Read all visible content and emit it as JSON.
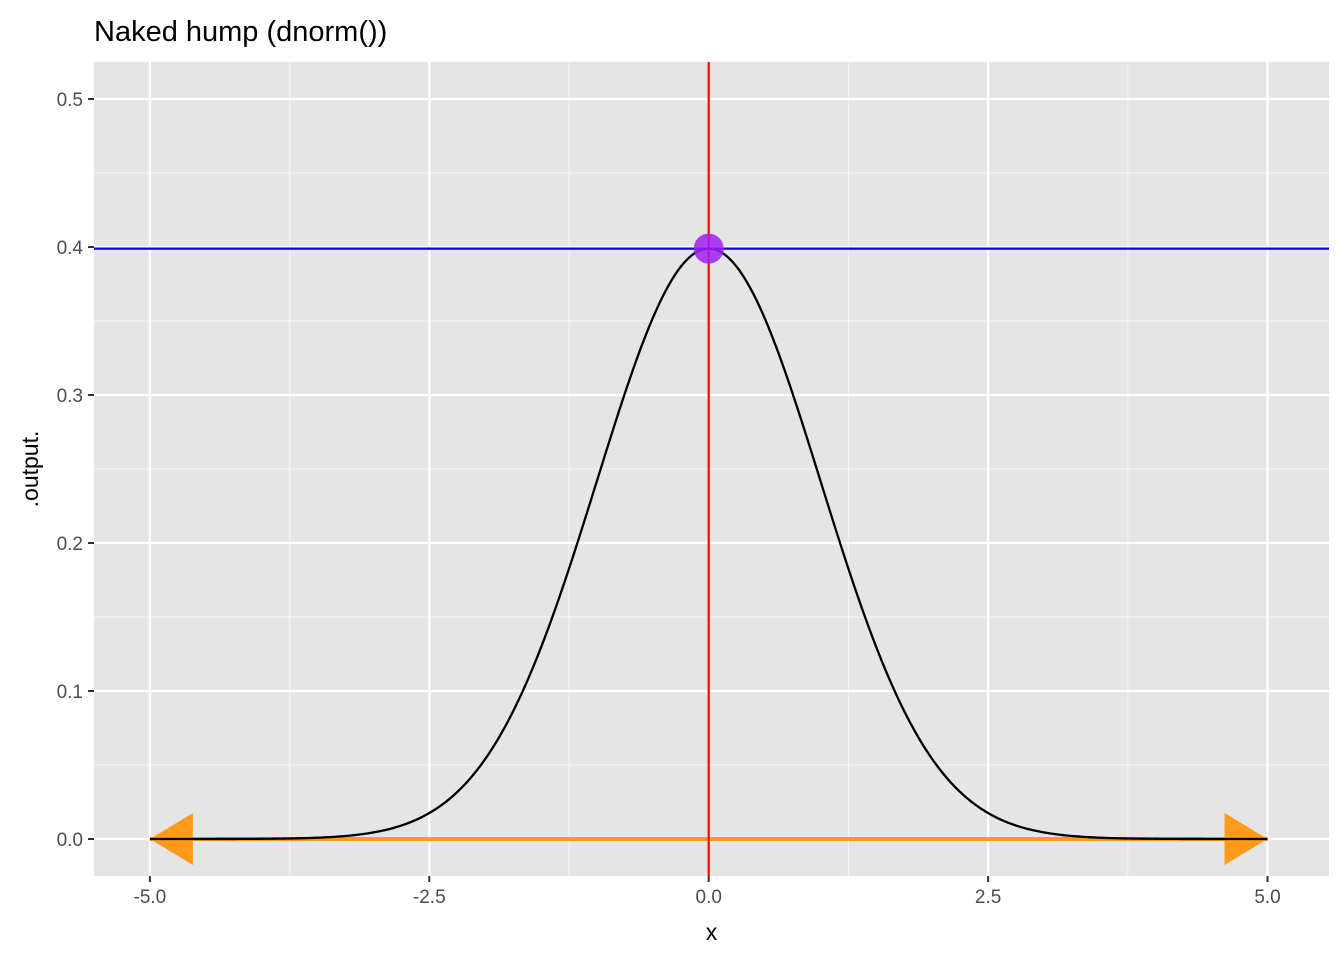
{
  "chart_data": {
    "type": "line",
    "title": "Naked hump (dnorm())",
    "xlabel": "x",
    "ylabel": ".output.",
    "xlim": [
      -5.5,
      5.55
    ],
    "ylim": [
      -0.025,
      0.525
    ],
    "x_ticks": [
      -5.0,
      -2.5,
      0.0,
      2.5,
      5.0
    ],
    "x_tick_labels": [
      "-5.0",
      "-2.5",
      "0.0",
      "2.5",
      "5.0"
    ],
    "y_ticks": [
      0.0,
      0.1,
      0.2,
      0.3,
      0.4,
      0.5
    ],
    "y_tick_labels": [
      "0.0",
      "0.1",
      "0.2",
      "0.3",
      "0.4",
      "0.5"
    ],
    "grid": true,
    "background": "#e5e5e5",
    "curve": {
      "function": "dnorm",
      "mean": 0,
      "sd": 1,
      "x_range": [
        -5,
        5
      ],
      "color": "#000000"
    },
    "vline": {
      "x": 0,
      "color": "#ff0000"
    },
    "hline": {
      "y": 0.3989,
      "color": "#0000ff"
    },
    "peak_point": {
      "x": 0,
      "y": 0.3989,
      "color": "#a020f0"
    },
    "arrow_segment": {
      "x": [
        -5,
        5
      ],
      "y": 0,
      "color": "#ff9a1a",
      "arrowheads": "both"
    }
  }
}
